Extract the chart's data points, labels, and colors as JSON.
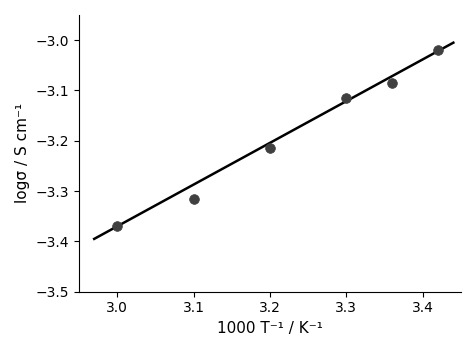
{
  "scatter_x": [
    3.0,
    3.1,
    3.2,
    3.3,
    3.36,
    3.42
  ],
  "scatter_y": [
    -3.37,
    -3.315,
    -3.215,
    -3.115,
    -3.085,
    -3.02
  ],
  "line_x": [
    2.97,
    3.44
  ],
  "line_y": [
    -3.395,
    -3.005
  ],
  "xlabel": "1000 T⁻¹ / K⁻¹",
  "ylabel": "logσ / S cm⁻¹",
  "xlim": [
    2.95,
    3.45
  ],
  "ylim": [
    -3.5,
    -2.95
  ],
  "xticks": [
    3.0,
    3.1,
    3.2,
    3.3,
    3.4
  ],
  "yticks": [
    -3.5,
    -3.4,
    -3.3,
    -3.2,
    -3.1,
    -3.0
  ],
  "scatter_color": "#404040",
  "line_color": "#000000",
  "background_color": "#ffffff",
  "marker_size": 7,
  "line_width": 1.8,
  "tick_labelsize": 10,
  "label_fontsize": 11
}
